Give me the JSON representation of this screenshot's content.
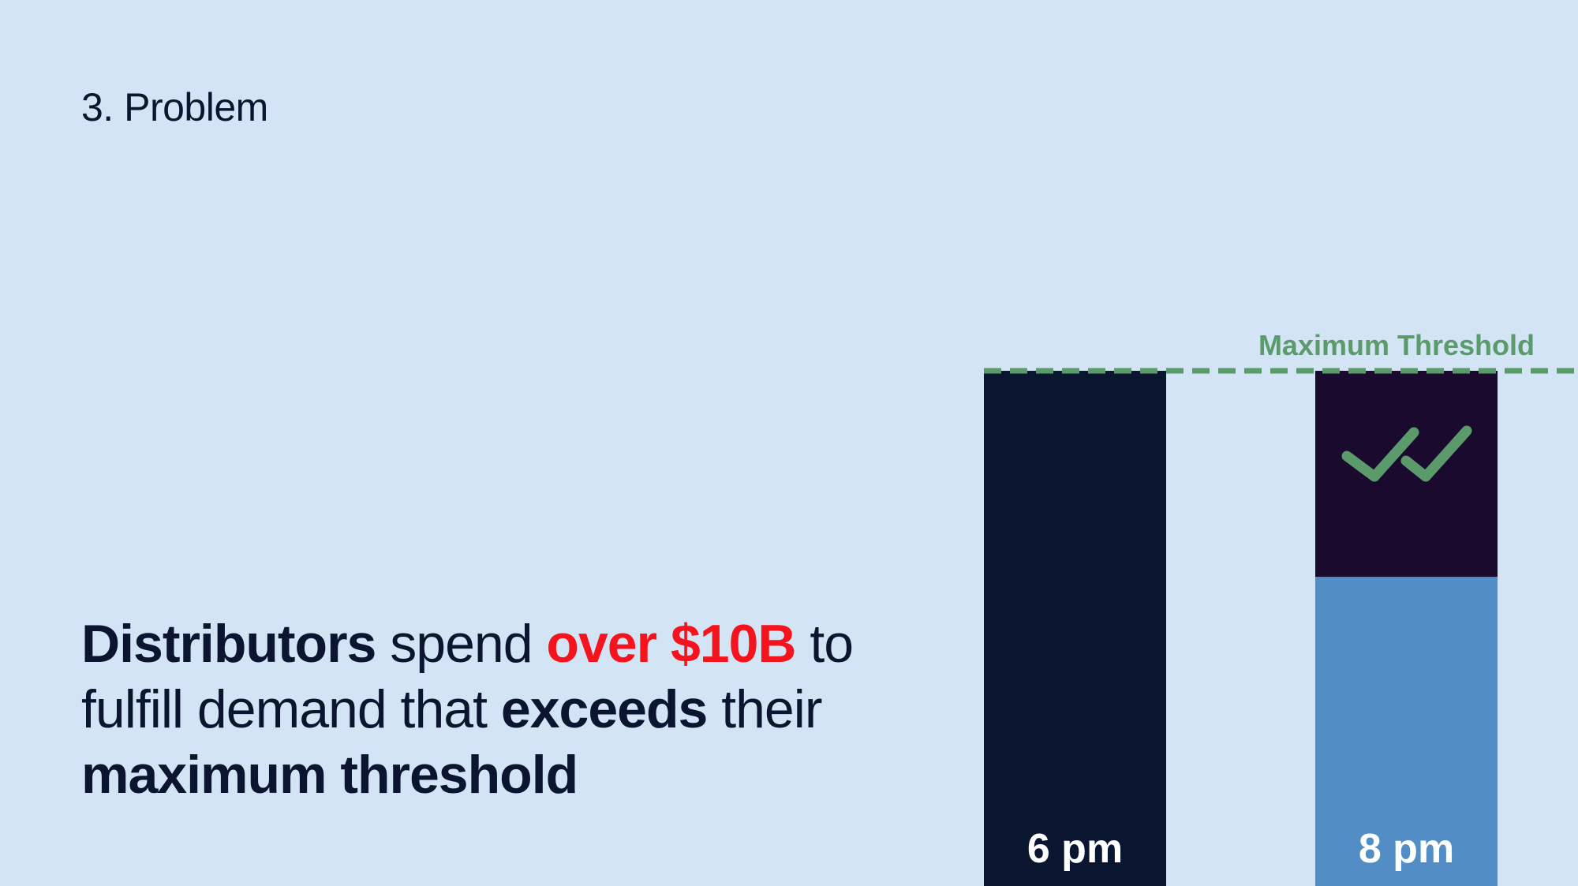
{
  "slide": {
    "number_label": "3. Problem",
    "background": "#d3e4f4"
  },
  "headline": {
    "part1_bold": "Distributors",
    "part2": " spend ",
    "part3_highlight": "over $10B",
    "part4": " to fulfill demand that ",
    "part5_bold": "exceeds",
    "part6": " their ",
    "part7_bold": "maximum threshold"
  },
  "colors": {
    "text_dark": "#0b1530",
    "highlight_red": "#f5141e",
    "bar_dark": "#0a1530",
    "bar_over": "#1a0a2e",
    "bar_light": "#528ec5",
    "threshold_green": "#5b9b6b"
  },
  "chart_data": {
    "type": "bar",
    "categories": [
      "6 pm",
      "8 pm"
    ],
    "series": [
      {
        "values": [
          1.0,
          0.6
        ]
      },
      {
        "values": [
          0,
          0.4
        ]
      }
    ],
    "threshold": {
      "label": "Maximum Threshold",
      "value": 1.0
    },
    "icons": [
      "double-check-icon"
    ],
    "ylim": [
      0,
      1
    ]
  }
}
